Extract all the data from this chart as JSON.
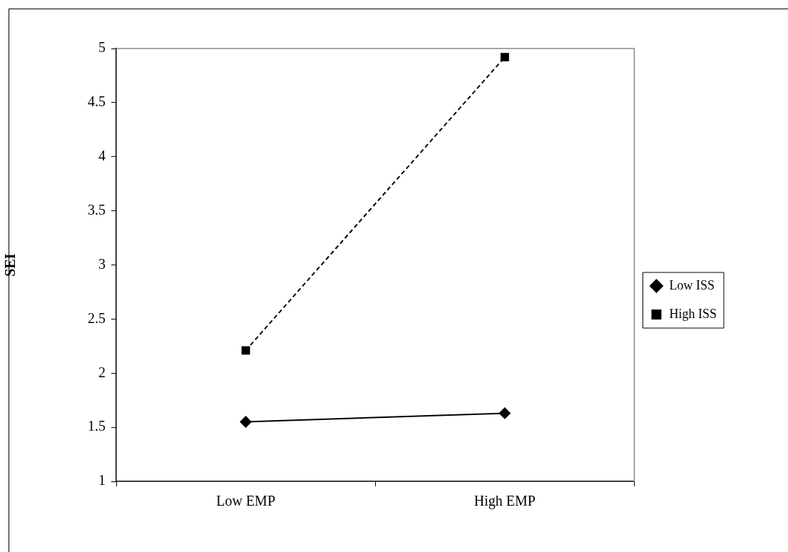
{
  "chart_data": {
    "type": "line",
    "ylabel": "SEI",
    "categories": [
      "Low EMP",
      "High EMP"
    ],
    "ylim": [
      1,
      5
    ],
    "yticks": [
      1,
      1.5,
      2,
      2.5,
      3,
      3.5,
      4,
      4.5,
      5
    ],
    "legend": "right",
    "series": [
      {
        "name": "Low ISS",
        "color": "#000000",
        "values": [
          1.55,
          1.63
        ],
        "marker": "diamond",
        "line_style": "solid"
      },
      {
        "name": "High ISS",
        "color": "#000000",
        "values": [
          2.21,
          4.92
        ],
        "marker": "square",
        "line_style": "dashed"
      }
    ]
  }
}
